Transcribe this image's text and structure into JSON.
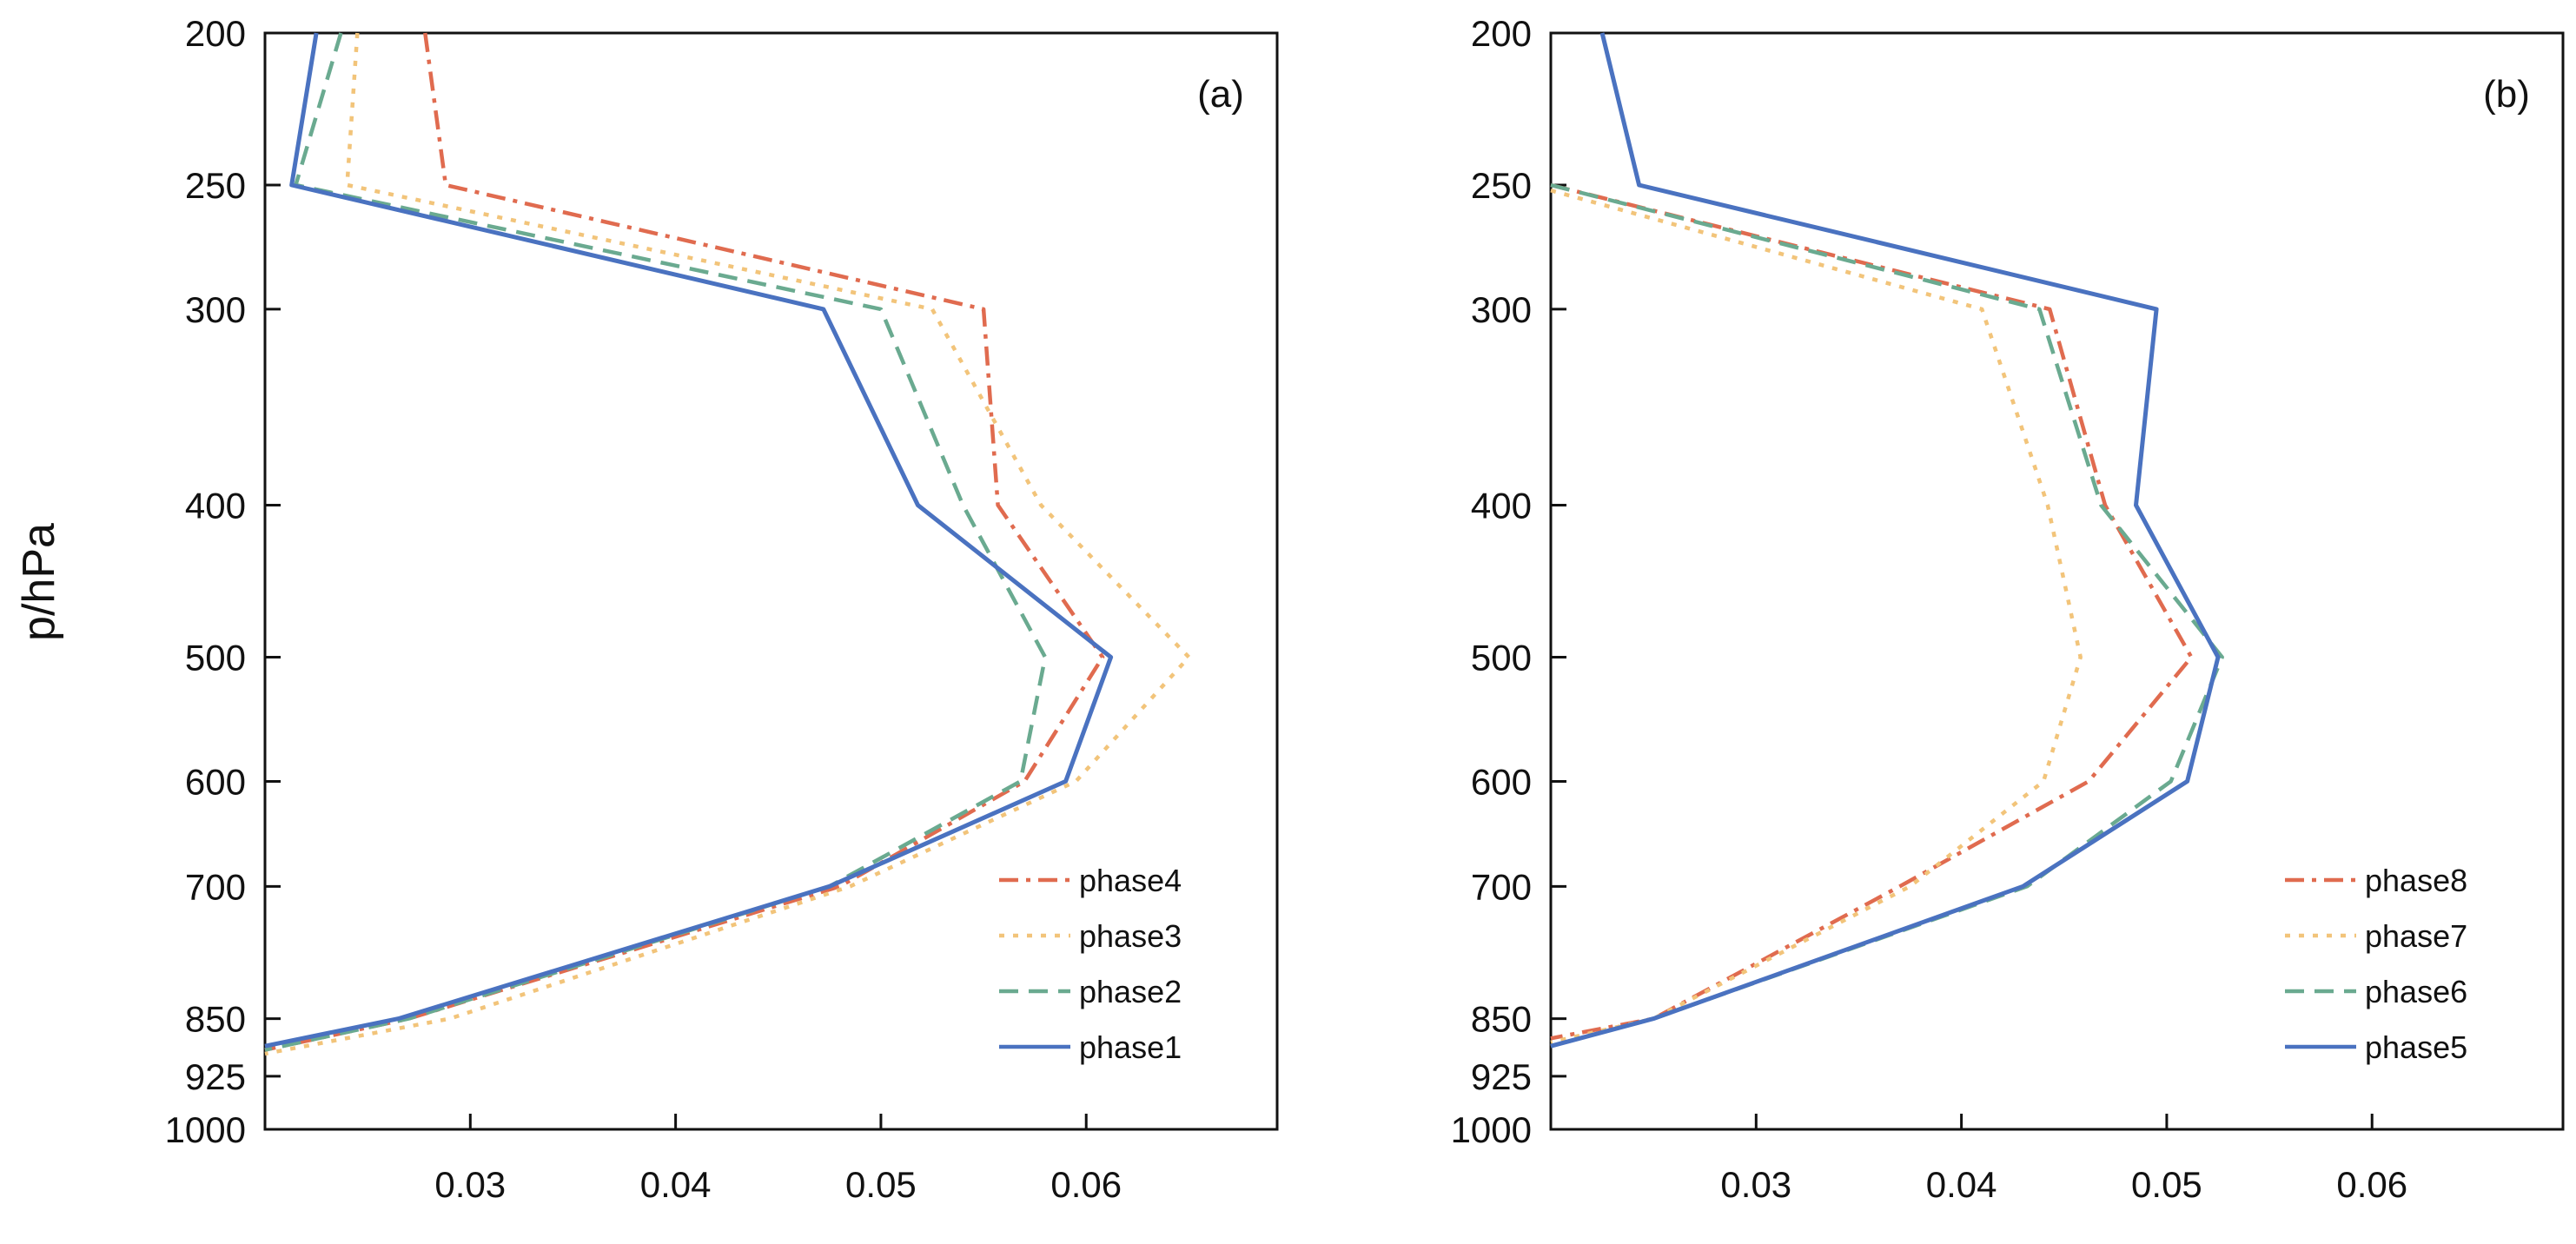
{
  "chart_data": [
    {
      "type": "line",
      "panel_label": "(a)",
      "ylabel": "p/hPa",
      "xlim": [
        0.02,
        0.0693
      ],
      "ylim": [
        200,
        1000
      ],
      "y_scale": "log",
      "y_inverted": true,
      "xticks": [
        0.03,
        0.04,
        0.05,
        0.06
      ],
      "xtick_labels": [
        "0.03",
        "0.04",
        "0.05",
        "0.06"
      ],
      "yticks": [
        200,
        250,
        300,
        400,
        500,
        600,
        700,
        850,
        925,
        1000
      ],
      "ytick_labels": [
        "200",
        "250",
        "300",
        "400",
        "500",
        "600",
        "700",
        "850",
        "925",
        "1000"
      ],
      "legend_position": "bottom-right",
      "series": [
        {
          "name": "phase4",
          "color": "#e06b4f",
          "dash": "dashdot",
          "points": [
            [
              0.0278,
              200
            ],
            [
              0.0288,
              250
            ],
            [
              0.055,
              300
            ],
            [
              0.0557,
              400
            ],
            [
              0.0608,
              500
            ],
            [
              0.057,
              600
            ],
            [
              0.048,
              700
            ],
            [
              0.027,
              850
            ],
            [
              0.02,
              890
            ]
          ]
        },
        {
          "name": "phase3",
          "color": "#f2c47a",
          "dash": "dot",
          "points": [
            [
              0.0245,
              200
            ],
            [
              0.024,
              250
            ],
            [
              0.0525,
              300
            ],
            [
              0.0578,
              400
            ],
            [
              0.065,
              500
            ],
            [
              0.0595,
              600
            ],
            [
              0.0485,
              700
            ],
            [
              0.029,
              850
            ],
            [
              0.02,
              895
            ]
          ]
        },
        {
          "name": "phase2",
          "color": "#6aaa90",
          "dash": "dash",
          "points": [
            [
              0.0237,
              200
            ],
            [
              0.0215,
              250
            ],
            [
              0.05,
              300
            ],
            [
              0.054,
              400
            ],
            [
              0.058,
              500
            ],
            [
              0.0568,
              600
            ],
            [
              0.0475,
              700
            ],
            [
              0.027,
              850
            ],
            [
              0.02,
              890
            ]
          ]
        },
        {
          "name": "phase1",
          "color": "#4a72c0",
          "dash": "solid",
          "points": [
            [
              0.0225,
              200
            ],
            [
              0.0213,
              250
            ],
            [
              0.0472,
              300
            ],
            [
              0.0518,
              400
            ],
            [
              0.0612,
              500
            ],
            [
              0.059,
              600
            ],
            [
              0.0475,
              700
            ],
            [
              0.0265,
              850
            ],
            [
              0.02,
              885
            ]
          ]
        }
      ]
    },
    {
      "type": "line",
      "panel_label": "(b)",
      "ylabel": "",
      "xlim": [
        0.02,
        0.0693
      ],
      "ylim": [
        200,
        1000
      ],
      "y_scale": "log",
      "y_inverted": true,
      "xticks": [
        0.03,
        0.04,
        0.05,
        0.06
      ],
      "xtick_labels": [
        "0.03",
        "0.04",
        "0.05",
        "0.06"
      ],
      "yticks": [
        200,
        250,
        300,
        400,
        500,
        600,
        700,
        850,
        925,
        1000
      ],
      "ytick_labels": [
        "200",
        "250",
        "300",
        "400",
        "500",
        "600",
        "700",
        "850",
        "925",
        "1000"
      ],
      "legend_position": "bottom-right",
      "series": [
        {
          "name": "phase8",
          "color": "#e06b4f",
          "dash": "dashdot",
          "points": [
            [
              0.02,
              250
            ],
            [
              0.0443,
              300
            ],
            [
              0.047,
              400
            ],
            [
              0.0512,
              500
            ],
            [
              0.0462,
              600
            ],
            [
              0.037,
              700
            ],
            [
              0.025,
              850
            ],
            [
              0.02,
              875
            ]
          ]
        },
        {
          "name": "phase7",
          "color": "#f2c47a",
          "dash": "dot",
          "points": [
            [
              0.02,
              252
            ],
            [
              0.041,
              300
            ],
            [
              0.0442,
              400
            ],
            [
              0.0458,
              500
            ],
            [
              0.044,
              600
            ],
            [
              0.0375,
              700
            ],
            [
              0.025,
              850
            ],
            [
              0.02,
              880
            ]
          ]
        },
        {
          "name": "phase6",
          "color": "#6aaa90",
          "dash": "dash",
          "points": [
            [
              0.02,
              250
            ],
            [
              0.0438,
              300
            ],
            [
              0.0468,
              400
            ],
            [
              0.0527,
              500
            ],
            [
              0.0502,
              600
            ],
            [
              0.0432,
              700
            ],
            [
              0.025,
              850
            ],
            [
              0.02,
              885
            ]
          ]
        },
        {
          "name": "phase5",
          "color": "#4a72c0",
          "dash": "solid",
          "points": [
            [
              0.0225,
              200
            ],
            [
              0.0243,
              250
            ],
            [
              0.0495,
              300
            ],
            [
              0.0485,
              400
            ],
            [
              0.0525,
              500
            ],
            [
              0.051,
              600
            ],
            [
              0.043,
              700
            ],
            [
              0.025,
              850
            ],
            [
              0.02,
              885
            ]
          ]
        }
      ]
    }
  ]
}
